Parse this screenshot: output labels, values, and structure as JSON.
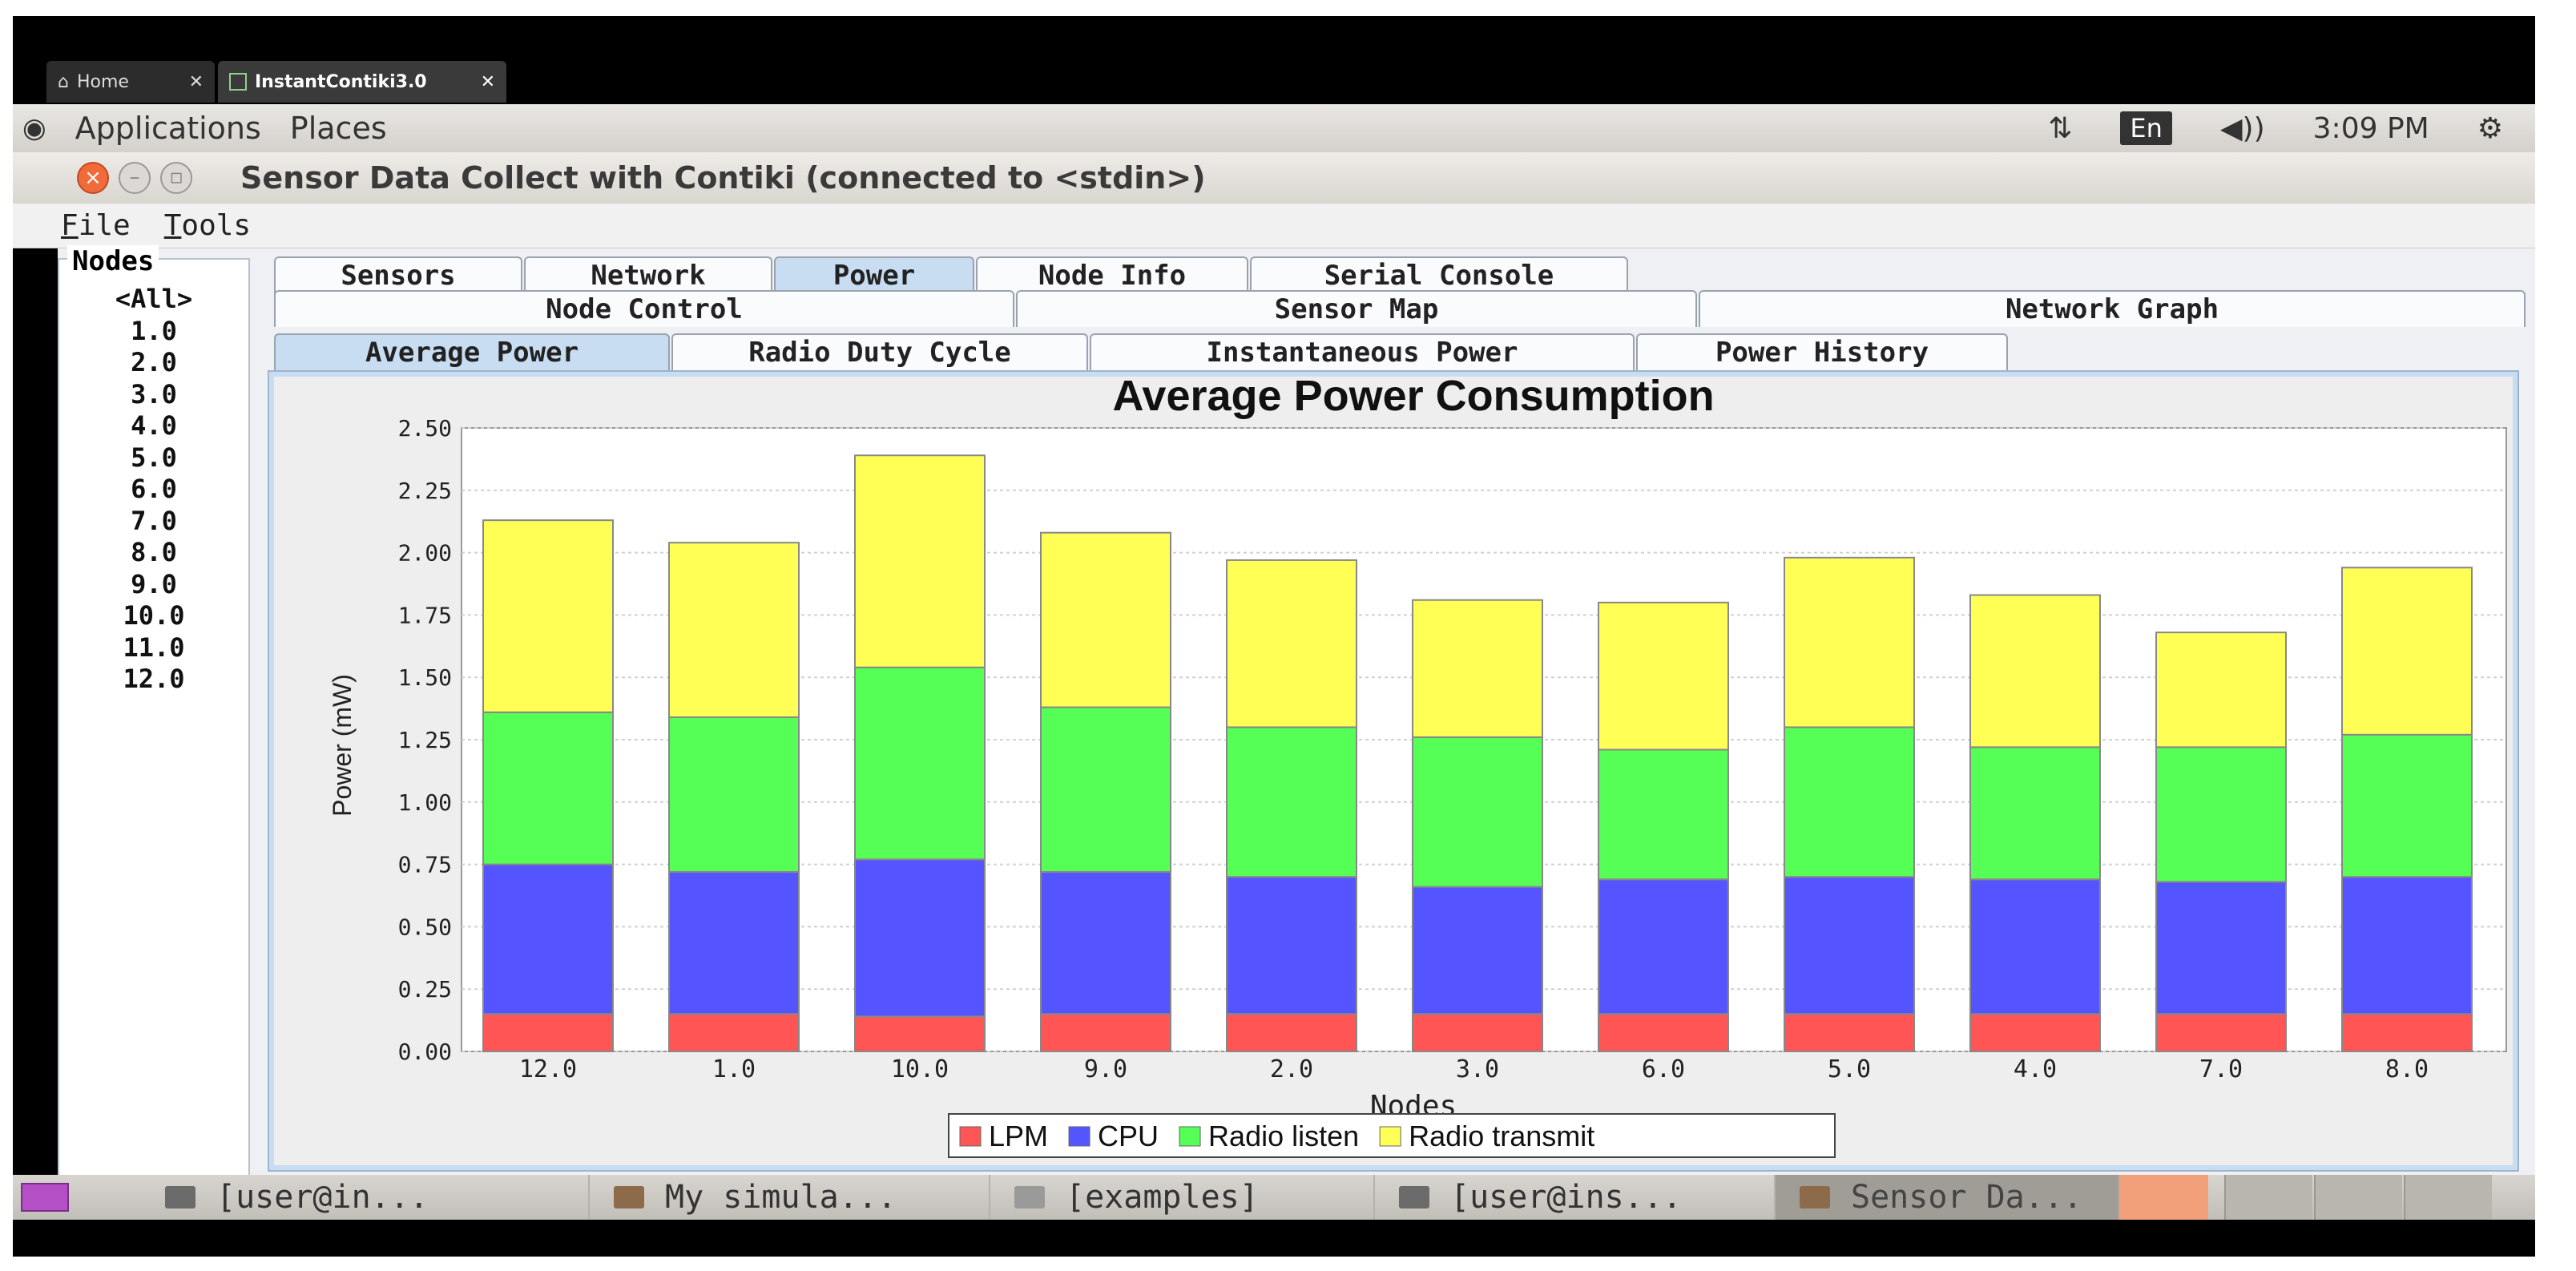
{
  "host_tabs": [
    {
      "label": "Home",
      "close": "✕"
    },
    {
      "label": "InstantContiki3.0",
      "close": "✕"
    }
  ],
  "top_panel": {
    "applications": "Applications",
    "places": "Places",
    "lang": "En",
    "time": "3:09 PM"
  },
  "window": {
    "title": "Sensor Data Collect with Contiki (connected to <stdin>)"
  },
  "menubar": {
    "file": {
      "first": "F",
      "rest": "ile"
    },
    "tools": {
      "first": "T",
      "rest": "ools"
    }
  },
  "nodes": {
    "legend": "Nodes",
    "items": [
      "<All>",
      "1.0",
      "2.0",
      "3.0",
      "4.0",
      "5.0",
      "6.0",
      "7.0",
      "8.0",
      "9.0",
      "10.0",
      "11.0",
      "12.0"
    ]
  },
  "tabs_row1": [
    "Sensors",
    "Network",
    "Power",
    "Node Info",
    "Serial Console"
  ],
  "tabs_row2": [
    "Node Control",
    "Sensor Map",
    "Network Graph"
  ],
  "tabs_row3": [
    "Average Power",
    "Radio Duty Cycle",
    "Instantaneous Power",
    "Power History"
  ],
  "taskbar": [
    "[user@in...",
    "My simula...",
    "[examples]",
    "[user@ins...",
    "Sensor Da..."
  ],
  "colors": {
    "lpm": "#ff5555",
    "cpu": "#5555ff",
    "radio_listen": "#55ff55",
    "radio_transmit": "#ffff55"
  },
  "chart_data": {
    "type": "bar",
    "stacked": true,
    "title": "Average Power Consumption",
    "xlabel": "Nodes",
    "ylabel": "Power (mW)",
    "ylim": [
      0,
      2.5
    ],
    "yticks": [
      "0.00",
      "0.25",
      "0.50",
      "0.75",
      "1.00",
      "1.25",
      "1.50",
      "1.75",
      "2.00",
      "2.25",
      "2.50"
    ],
    "categories": [
      "12.0",
      "1.0",
      "10.0",
      "9.0",
      "2.0",
      "3.0",
      "6.0",
      "5.0",
      "4.0",
      "7.0",
      "8.0"
    ],
    "series": [
      {
        "name": "LPM",
        "color": "#ff5555",
        "values": [
          0.15,
          0.15,
          0.14,
          0.15,
          0.15,
          0.15,
          0.15,
          0.15,
          0.15,
          0.15,
          0.15
        ]
      },
      {
        "name": "CPU",
        "color": "#5555ff",
        "values": [
          0.6,
          0.57,
          0.63,
          0.57,
          0.55,
          0.51,
          0.54,
          0.55,
          0.54,
          0.53,
          0.55
        ]
      },
      {
        "name": "Radio listen",
        "color": "#55ff55",
        "values": [
          0.61,
          0.62,
          0.77,
          0.66,
          0.6,
          0.6,
          0.52,
          0.6,
          0.53,
          0.54,
          0.57
        ]
      },
      {
        "name": "Radio transmit",
        "color": "#ffff55",
        "values": [
          0.77,
          0.7,
          0.85,
          0.7,
          0.67,
          0.55,
          0.59,
          0.68,
          0.61,
          0.46,
          0.67
        ]
      }
    ],
    "legend_position": "bottom-center",
    "grid": true
  }
}
